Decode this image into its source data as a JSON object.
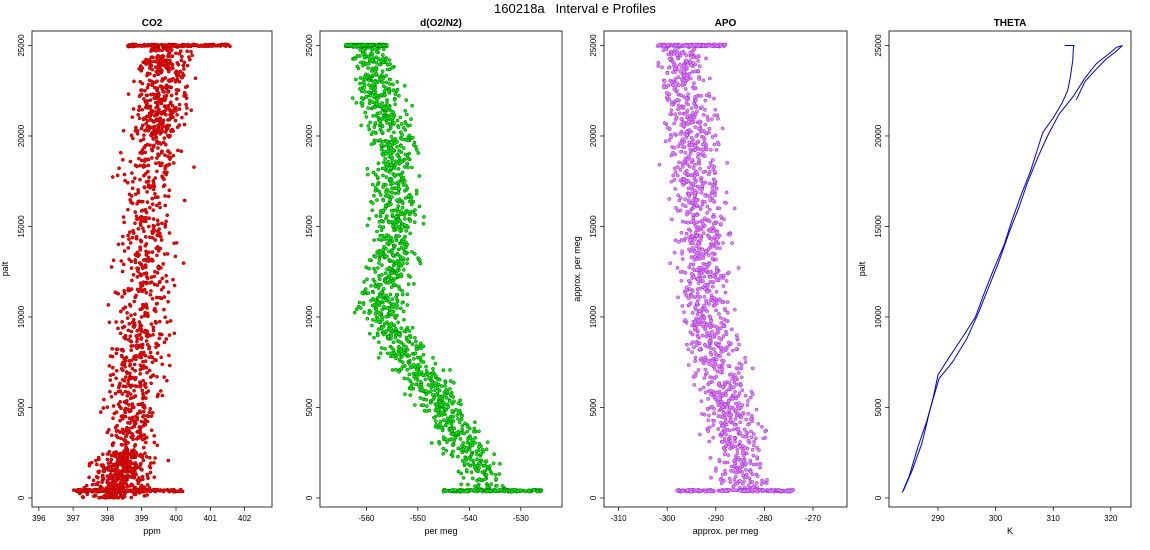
{
  "title": "160218a   Interval e Profiles",
  "chart_data": [
    {
      "id": "co2",
      "type": "scatter",
      "title": "CO2",
      "xlabel": "ppm",
      "ylabel": "palt",
      "xlim": [
        395.8,
        402.8
      ],
      "ylim": [
        -500,
        25800
      ],
      "xticks": [
        396,
        397,
        398,
        399,
        400,
        401,
        402
      ],
      "yticks": [
        0,
        5000,
        10000,
        15000,
        20000,
        25000
      ],
      "marker_color": "#ff0000",
      "outline_color": "#8b0000",
      "series": [
        {
          "alt_range": [
            0,
            2500
          ],
          "center": [
            398.2,
            398.6
          ],
          "spread": 0.8
        },
        {
          "alt_range": [
            2500,
            10000
          ],
          "center": [
            398.6,
            399.0
          ],
          "spread": 0.75
        },
        {
          "alt_range": [
            10000,
            20000
          ],
          "center": [
            399.0,
            399.4
          ],
          "spread": 0.8
        },
        {
          "alt_range": [
            20000,
            25000
          ],
          "center": [
            399.4,
            399.8
          ],
          "spread": 0.7
        }
      ],
      "bottom_cluster": {
        "alt": 400,
        "x_range": [
          397.0,
          400.2
        ]
      },
      "top_cluster": {
        "alt": 25000,
        "x_range": [
          398.6,
          401.6
        ]
      }
    },
    {
      "id": "o2n2",
      "type": "scatter",
      "title": "d(O2/N2)",
      "xlabel": "per meg",
      "ylabel": "",
      "xlim": [
        -569,
        -522
      ],
      "ylim": [
        -500,
        25800
      ],
      "xticks": [
        -560,
        -550,
        -540,
        -530
      ],
      "yticks": [
        0,
        5000,
        10000,
        15000,
        20000,
        25000
      ],
      "marker_color": "#00ee00",
      "outline_color": "#006400",
      "series": [
        {
          "alt": 25000,
          "center": -560
        },
        {
          "alt": 20000,
          "center": -555
        },
        {
          "alt": 15000,
          "center": -554
        },
        {
          "alt": 10000,
          "center": -557
        },
        {
          "alt": 5000,
          "center": -545
        },
        {
          "alt": 2000,
          "center": -539
        },
        {
          "alt": 400,
          "center": -537
        }
      ],
      "bottom_cluster": {
        "alt": 400,
        "x_range": [
          -545,
          -526
        ]
      },
      "top_cluster": {
        "alt": 25000,
        "x_range": [
          -564,
          -556
        ]
      }
    },
    {
      "id": "apo",
      "type": "scatter",
      "title": "APO",
      "xlabel": "approx. per meg",
      "ylabel": "approx. per meg",
      "xlim": [
        -313,
        -263
      ],
      "ylim": [
        -500,
        25800
      ],
      "xticks": [
        -310,
        -300,
        -290,
        -280,
        -270
      ],
      "yticks": [
        0,
        5000,
        10000,
        15000,
        20000,
        25000
      ],
      "marker_color": "#ee82ee",
      "outline_color": "#8a2be2",
      "series": [
        {
          "alt": 25000,
          "center": -297
        },
        {
          "alt": 20000,
          "center": -295
        },
        {
          "alt": 15000,
          "center": -293
        },
        {
          "alt": 10000,
          "center": -292
        },
        {
          "alt": 5000,
          "center": -288
        },
        {
          "alt": 2000,
          "center": -285
        },
        {
          "alt": 400,
          "center": -284
        }
      ],
      "bottom_cluster": {
        "alt": 400,
        "x_range": [
          -298,
          -274
        ]
      },
      "top_cluster": {
        "alt": 25000,
        "x_range": [
          -302,
          -288
        ]
      }
    },
    {
      "id": "theta",
      "type": "line",
      "title": "THETA",
      "xlabel": "K",
      "ylabel": "palt",
      "xlim": [
        281.5,
        323.5
      ],
      "ylim": [
        -500,
        25800
      ],
      "xticks": [
        290,
        300,
        310,
        320
      ],
      "yticks": [
        0,
        5000,
        10000,
        15000,
        20000,
        25000
      ],
      "line_color": "#0000cc",
      "series": [
        {
          "name": "",
          "points": [
            [
              284.0,
              400
            ],
            [
              285.5,
              1500
            ],
            [
              287.2,
              3000
            ],
            [
              288.4,
              4600
            ],
            [
              289.2,
              5600
            ],
            [
              290.0,
              6800
            ],
            [
              292.0,
              7800
            ],
            [
              294.5,
              9000
            ],
            [
              296.5,
              10000
            ],
            [
              298.0,
              11300
            ],
            [
              299.5,
              12500
            ],
            [
              301.5,
              14000
            ],
            [
              302.8,
              15300
            ],
            [
              304.5,
              16800
            ],
            [
              306.0,
              18000
            ],
            [
              307.2,
              19200
            ],
            [
              308.2,
              20200
            ],
            [
              310.0,
              21000
            ],
            [
              311.5,
              21800
            ],
            [
              312.5,
              22500
            ],
            [
              313.0,
              23300
            ],
            [
              313.4,
              24200
            ],
            [
              313.5,
              24900
            ],
            [
              313.6,
              25000
            ],
            [
              312.0,
              25000
            ]
          ]
        },
        {
          "name": "",
          "points": [
            [
              283.8,
              300
            ],
            [
              285.0,
              1200
            ],
            [
              286.5,
              2800
            ],
            [
              288.0,
              4200
            ],
            [
              289.0,
              5300
            ],
            [
              290.2,
              6600
            ],
            [
              292.5,
              7500
            ],
            [
              295.0,
              8800
            ],
            [
              297.0,
              10200
            ],
            [
              299.0,
              11800
            ],
            [
              300.5,
              13000
            ],
            [
              302.5,
              14800
            ],
            [
              304.0,
              16000
            ],
            [
              305.5,
              17400
            ],
            [
              307.3,
              18800
            ],
            [
              309.0,
              20000
            ],
            [
              311.0,
              21200
            ],
            [
              313.5,
              22200
            ],
            [
              315.5,
              23200
            ],
            [
              317.5,
              24000
            ],
            [
              319.5,
              24500
            ],
            [
              321.0,
              24900
            ],
            [
              322.0,
              25000
            ],
            [
              321.0,
              24700
            ],
            [
              319.0,
              24200
            ],
            [
              317.2,
              23600
            ],
            [
              315.5,
              23000
            ],
            [
              314.0,
              22000
            ]
          ]
        }
      ]
    }
  ]
}
